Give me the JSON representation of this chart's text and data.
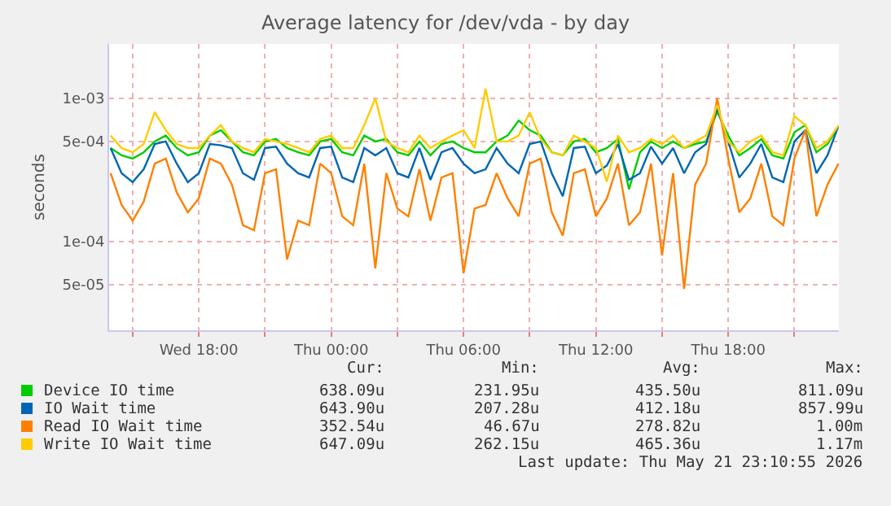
{
  "chart_data": {
    "type": "line",
    "title": "Average latency for /dev/vda - by day",
    "ylabel": "seconds",
    "x": [
      "2026-05-20T14:00",
      "2026-05-20T14:30",
      "2026-05-20T15:00",
      "2026-05-20T15:30",
      "2026-05-20T16:00",
      "2026-05-20T16:30",
      "2026-05-20T17:00",
      "2026-05-20T17:30",
      "2026-05-20T18:00",
      "2026-05-20T18:30",
      "2026-05-20T19:00",
      "2026-05-20T19:30",
      "2026-05-20T20:00",
      "2026-05-20T20:30",
      "2026-05-20T21:00",
      "2026-05-20T21:30",
      "2026-05-20T22:00",
      "2026-05-20T22:30",
      "2026-05-20T23:00",
      "2026-05-20T23:30",
      "2026-05-21T00:00",
      "2026-05-21T00:30",
      "2026-05-21T01:00",
      "2026-05-21T01:30",
      "2026-05-21T02:00",
      "2026-05-21T02:30",
      "2026-05-21T03:00",
      "2026-05-21T03:30",
      "2026-05-21T04:00",
      "2026-05-21T04:30",
      "2026-05-21T05:00",
      "2026-05-21T05:30",
      "2026-05-21T06:00",
      "2026-05-21T06:30",
      "2026-05-21T07:00",
      "2026-05-21T07:30",
      "2026-05-21T08:00",
      "2026-05-21T08:30",
      "2026-05-21T09:00",
      "2026-05-21T09:30",
      "2026-05-21T10:00",
      "2026-05-21T10:30",
      "2026-05-21T11:00",
      "2026-05-21T11:30",
      "2026-05-21T12:00",
      "2026-05-21T12:30",
      "2026-05-21T13:00",
      "2026-05-21T13:30",
      "2026-05-21T14:00",
      "2026-05-21T14:30",
      "2026-05-21T15:00",
      "2026-05-21T15:30",
      "2026-05-21T16:00",
      "2026-05-21T16:30",
      "2026-05-21T17:00",
      "2026-05-21T17:30",
      "2026-05-21T18:00",
      "2026-05-21T18:30",
      "2026-05-21T19:00",
      "2026-05-21T19:30",
      "2026-05-21T20:00",
      "2026-05-21T20:30",
      "2026-05-21T21:00",
      "2026-05-21T21:30",
      "2026-05-21T22:00",
      "2026-05-21T22:30",
      "2026-05-21T23:00"
    ],
    "series": [
      {
        "name": "Device IO time",
        "color": "#00cc00",
        "values": [
          0.00045,
          0.0004,
          0.00038,
          0.00042,
          0.0005,
          0.00055,
          0.00045,
          0.0004,
          0.00042,
          0.00055,
          0.0006,
          0.0005,
          0.00042,
          0.0004,
          0.0005,
          0.00052,
          0.00045,
          0.00042,
          0.0004,
          0.0005,
          0.00052,
          0.00042,
          0.0004,
          0.00055,
          0.0005,
          0.00052,
          0.00042,
          0.0004,
          0.0005,
          0.0004,
          0.00048,
          0.0005,
          0.00045,
          0.00042,
          0.00042,
          0.0005,
          0.00055,
          0.0007,
          0.0006,
          0.00055,
          0.00042,
          0.0004,
          0.0005,
          0.00052,
          0.00042,
          0.00045,
          0.00052,
          0.000232,
          0.00042,
          0.0005,
          0.00045,
          0.0005,
          0.00045,
          0.00048,
          0.0005,
          0.000811,
          0.00055,
          0.0004,
          0.00045,
          0.00052,
          0.0004,
          0.00038,
          0.00058,
          0.00065,
          0.00042,
          0.00048,
          0.000638
        ]
      },
      {
        "name": "IO Wait time",
        "color": "#0066b3",
        "values": [
          0.00045,
          0.0003,
          0.00026,
          0.00032,
          0.00048,
          0.0005,
          0.00035,
          0.00026,
          0.0003,
          0.00048,
          0.00047,
          0.00045,
          0.0003,
          0.00027,
          0.00045,
          0.00046,
          0.00035,
          0.0003,
          0.00028,
          0.00045,
          0.00046,
          0.00028,
          0.00026,
          0.00045,
          0.0004,
          0.00045,
          0.0003,
          0.00028,
          0.00045,
          0.00027,
          0.00042,
          0.00045,
          0.00035,
          0.0003,
          0.00032,
          0.00045,
          0.00035,
          0.0003,
          0.00048,
          0.0005,
          0.0003,
          0.000207,
          0.00045,
          0.00046,
          0.0003,
          0.00034,
          0.00048,
          0.00027,
          0.0003,
          0.00046,
          0.00035,
          0.00045,
          0.0003,
          0.00042,
          0.00048,
          0.000858,
          0.0005,
          0.00028,
          0.00035,
          0.00048,
          0.00028,
          0.00026,
          0.0005,
          0.0006,
          0.0003,
          0.0004,
          0.000644
        ]
      },
      {
        "name": "Read IO Wait time",
        "color": "#ff8000",
        "values": [
          0.0003,
          0.00018,
          0.00014,
          0.00019,
          0.00035,
          0.00038,
          0.00022,
          0.00016,
          0.0002,
          0.00038,
          0.00035,
          0.00025,
          0.00013,
          0.00012,
          0.0003,
          0.00032,
          7.5e-05,
          0.00014,
          0.00013,
          0.00035,
          0.0003,
          0.00015,
          0.00013,
          0.00035,
          6.5e-05,
          0.0003,
          0.00017,
          0.00015,
          0.00032,
          0.00014,
          0.00028,
          0.0003,
          6e-05,
          0.00017,
          0.00018,
          0.0003,
          0.0002,
          0.00015,
          0.00035,
          0.00038,
          0.00016,
          0.00011,
          0.0003,
          0.00032,
          0.00015,
          0.0002,
          0.00035,
          0.00013,
          0.00016,
          0.00035,
          8e-05,
          0.0003,
          4.67e-05,
          0.00025,
          0.00035,
          0.001,
          0.00038,
          0.00016,
          0.0002,
          0.00035,
          0.00015,
          0.00013,
          0.00038,
          0.0006,
          0.00015,
          0.00025,
          0.00035
        ]
      },
      {
        "name": "Write IO Wait time",
        "color": "#ffcc00",
        "values": [
          0.00055,
          0.00045,
          0.00042,
          0.00048,
          0.0008,
          0.0006,
          0.00048,
          0.00045,
          0.00045,
          0.00055,
          0.00065,
          0.0005,
          0.00045,
          0.00042,
          0.00052,
          0.0005,
          0.00048,
          0.00045,
          0.00042,
          0.00052,
          0.00055,
          0.00045,
          0.00045,
          0.00065,
          0.001,
          0.0005,
          0.00045,
          0.00042,
          0.00055,
          0.00045,
          0.0005,
          0.00055,
          0.0006,
          0.00045,
          0.00117,
          0.0005,
          0.0005,
          0.00055,
          0.0008,
          0.00052,
          0.00042,
          0.0004,
          0.00055,
          0.0005,
          0.00045,
          0.000262,
          0.00055,
          0.00042,
          0.00045,
          0.00052,
          0.00048,
          0.00055,
          0.00045,
          0.0005,
          0.00055,
          0.0009,
          0.0005,
          0.00042,
          0.0005,
          0.00055,
          0.00042,
          0.0004,
          0.00075,
          0.00065,
          0.00045,
          0.0005,
          0.000647
        ]
      }
    ],
    "xlim": [
      "2026-05-20T13:56",
      "2026-05-21T23:01"
    ],
    "xticks": [
      {
        "value": "2026-05-20T15:00",
        "label": null
      },
      {
        "value": "2026-05-20T18:00",
        "label": "Wed 18:00"
      },
      {
        "value": "2026-05-20T21:00",
        "label": null
      },
      {
        "value": "2026-05-21T00:00",
        "label": "Thu 00:00"
      },
      {
        "value": "2026-05-21T03:00",
        "label": null
      },
      {
        "value": "2026-05-21T06:00",
        "label": "Thu 06:00"
      },
      {
        "value": "2026-05-21T09:00",
        "label": null
      },
      {
        "value": "2026-05-21T12:00",
        "label": "Thu 12:00"
      },
      {
        "value": "2026-05-21T15:00",
        "label": null
      },
      {
        "value": "2026-05-21T18:00",
        "label": "Thu 18:00"
      },
      {
        "value": "2026-05-21T21:00",
        "label": null
      }
    ],
    "ylim": [
      2.4e-05,
      0.0024
    ],
    "yticks": [
      {
        "value": 5e-05,
        "label": "5e-05"
      },
      {
        "value": 0.0001,
        "label": "1e-04"
      },
      {
        "value": 0.0005,
        "label": "5e-04"
      },
      {
        "value": 0.001,
        "label": "1e-03"
      }
    ],
    "log": "y",
    "grid": true,
    "legend": "bottom",
    "marker": "none",
    "line_style": "solid",
    "annotations": [
      "Cur:",
      "Min:",
      "Avg:",
      "Max:",
      "638.09u",
      "231.95u",
      "435.50u",
      "811.09u",
      "643.90u",
      "207.28u",
      "412.18u",
      "857.99u",
      "352.54u",
      "46.67u",
      "278.82u",
      "1.00m",
      "647.09u",
      "262.15u",
      "465.36u",
      "1.17m",
      "Last update: Thu May 21 23:10:55 2026"
    ]
  }
}
